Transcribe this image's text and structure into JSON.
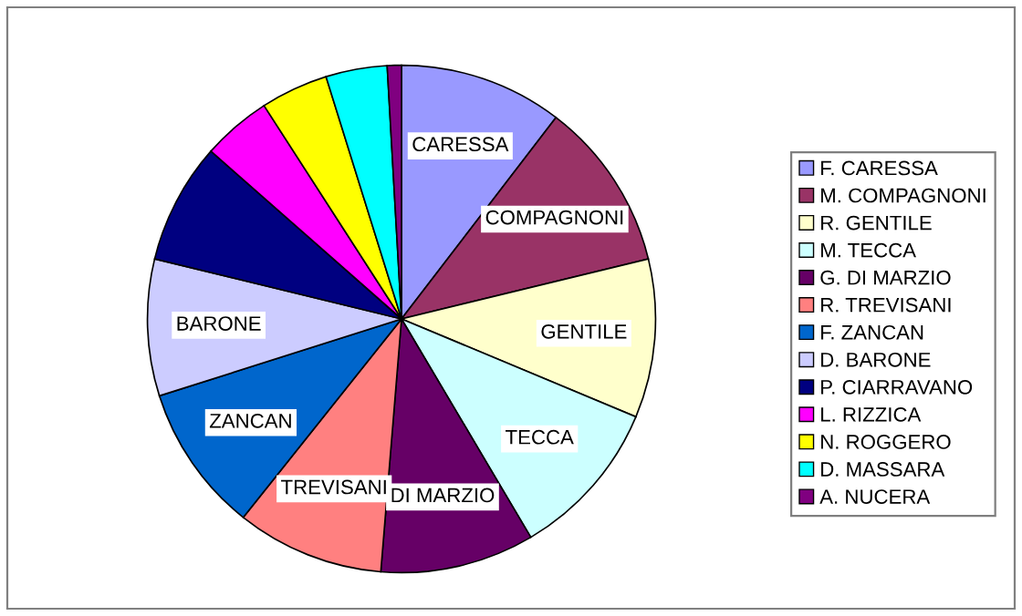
{
  "chart_data": {
    "type": "pie",
    "categories": [
      "F. CARESSA",
      "M. COMPAGNONI",
      "R. GENTILE",
      "M. TECCA",
      "G. DI MARZIO",
      "R. TREVISANI",
      "F. ZANCAN",
      "D. BARONE",
      "P. CIARRAVANO",
      "L. RIZZICA",
      "N. ROGGERO",
      "D. MASSARA",
      "A. NUCERA"
    ],
    "values": [
      10.4,
      10.8,
      10.1,
      10.2,
      9.8,
      9.4,
      9.4,
      8.7,
      7.7,
      4.4,
      4.3,
      3.9,
      0.9
    ],
    "colors": [
      "#9999ff",
      "#993366",
      "#ffffcc",
      "#ccffff",
      "#660066",
      "#ff8080",
      "#0066cc",
      "#ccccff",
      "#000080",
      "#ff00ff",
      "#ffff00",
      "#00ffff",
      "#800080"
    ],
    "annotations": [
      {
        "text": "CARESSA",
        "x": "F. CARESSA"
      },
      {
        "text": "COMPAGNONI",
        "x": "M. COMPAGNONI"
      },
      {
        "text": "GENTILE",
        "x": "R. GENTILE"
      },
      {
        "text": "TECCA",
        "x": "M. TECCA"
      },
      {
        "text": "DI MARZIO",
        "x": "G. DI MARZIO"
      },
      {
        "text": "TREVISANI",
        "x": "R. TREVISANI"
      },
      {
        "text": "ZANCAN",
        "x": "F. ZANCAN"
      },
      {
        "text": "BARONE",
        "x": "D. BARONE"
      }
    ],
    "legend": "right"
  }
}
